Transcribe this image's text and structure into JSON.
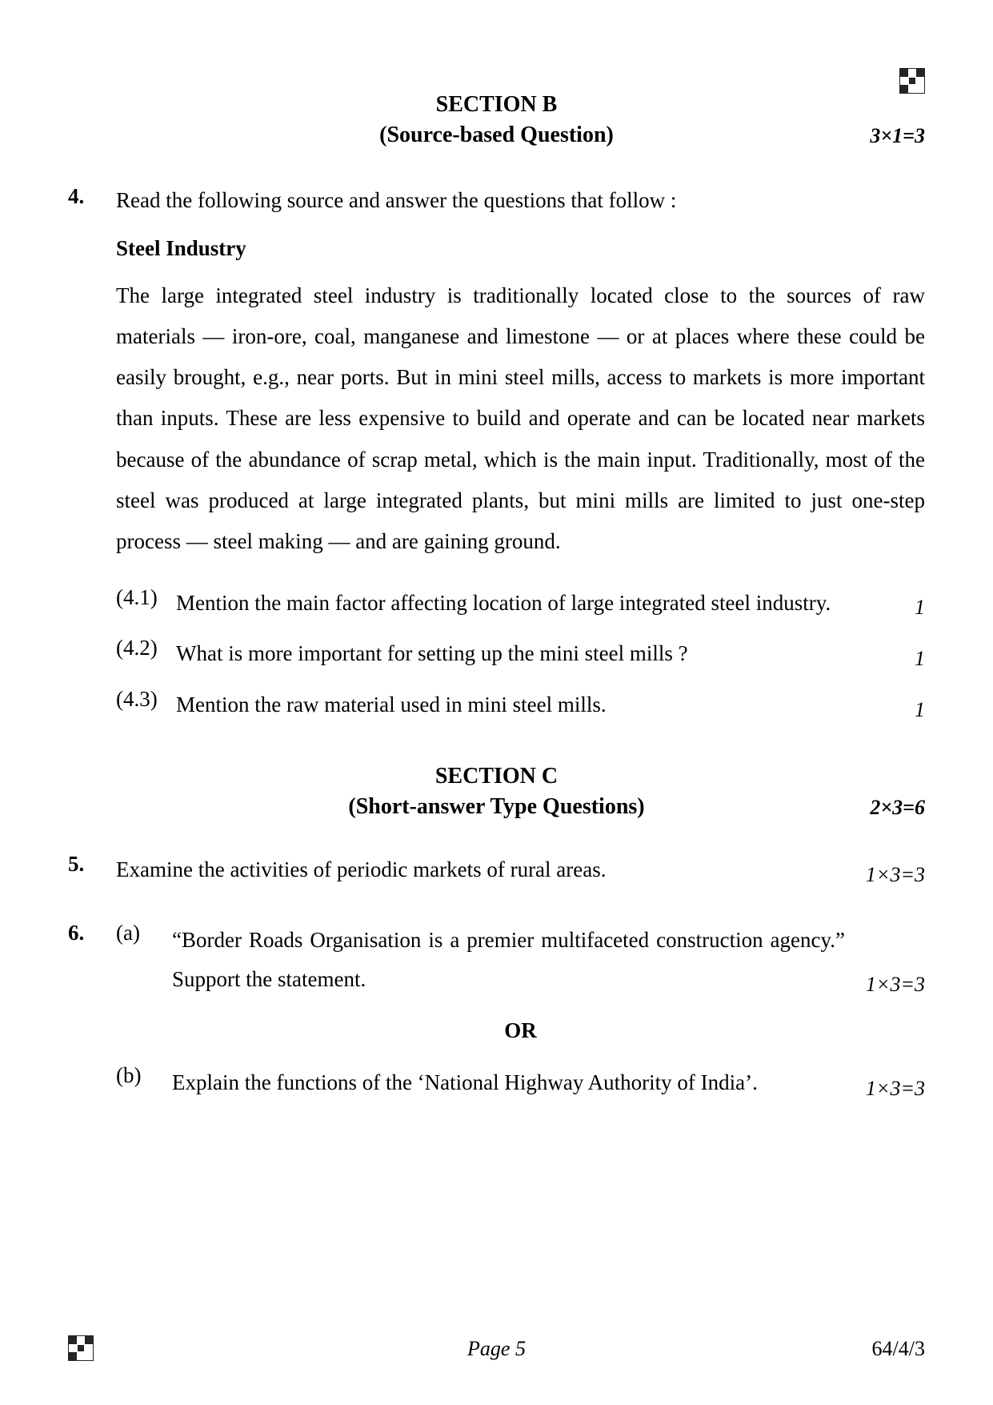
{
  "sectionB": {
    "title": "SECTION B",
    "subtitle": "(Source-based Question)",
    "marks": "3×1=3"
  },
  "q4": {
    "number": "4.",
    "intro": "Read the following source and answer the questions that follow :",
    "heading": "Steel Industry",
    "passage": "The large integrated steel industry is traditionally located close to the sources of raw materials — iron-ore, coal, manganese and limestone — or at places where these could be easily brought, e.g., near ports. But in mini steel mills, access to markets is more important than inputs. These are less expensive to build and operate and can be located near markets because of the abundance of scrap metal, which is the main input. Traditionally, most of the steel was produced at large integrated plants, but mini mills are limited to just one-step process — steel making — and are gaining ground.",
    "subs": [
      {
        "num": "(4.1)",
        "text": "Mention the main factor affecting location of large integrated steel industry.",
        "mark": "1"
      },
      {
        "num": "(4.2)",
        "text": "What is more important for setting up the mini steel mills ?",
        "mark": "1"
      },
      {
        "num": "(4.3)",
        "text": "Mention the raw material used in mini steel mills.",
        "mark": "1"
      }
    ]
  },
  "sectionC": {
    "title": "SECTION C",
    "subtitle": "(Short-answer Type Questions)",
    "marks": "2×3=6"
  },
  "q5": {
    "number": "5.",
    "text": "Examine the activities of periodic markets of rural areas.",
    "mark": "1×3=3"
  },
  "q6": {
    "number": "6.",
    "a": {
      "opt": "(a)",
      "text": "“Border Roads Organisation is a premier multifaceted construction agency.” Support the statement.",
      "mark": "1×3=3"
    },
    "or": "OR",
    "b": {
      "opt": "(b)",
      "text": "Explain the functions of the ‘National Highway Authority of India’.",
      "mark": "1×3=3"
    }
  },
  "footer": {
    "page": "Page 5",
    "code": "64/4/3"
  }
}
